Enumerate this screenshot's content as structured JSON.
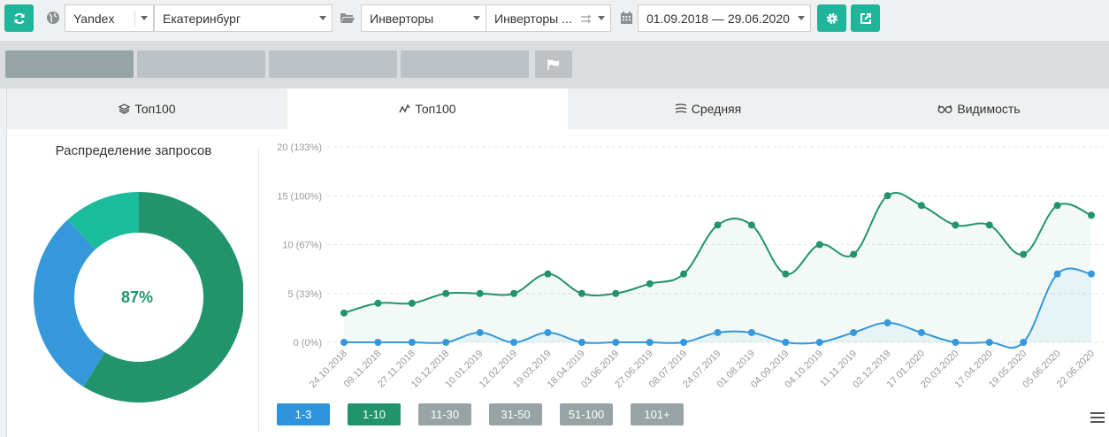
{
  "toolbar": {
    "engine": "Yandex",
    "region": "Екатеринбург",
    "project": "Инверторы",
    "group": "Инверторы ...",
    "date_range": "01.09.2018 — 29.06.2020"
  },
  "tabs": [
    {
      "label": "Топ100",
      "icon": "layers-icon"
    },
    {
      "label": "Топ100",
      "icon": "line-chart-icon"
    },
    {
      "label": "Средняя",
      "icon": "lines-icon"
    },
    {
      "label": "Видимость",
      "icon": "glasses-icon"
    }
  ],
  "pie": {
    "title": "Распределение запросов",
    "center_label": "87%",
    "slices": [
      {
        "color": "#22946b",
        "fraction": 0.588
      },
      {
        "color": "#3498db",
        "fraction": 0.294
      },
      {
        "color": "#1abc9c",
        "fraction": 0.118
      }
    ]
  },
  "legend": [
    {
      "label": "1-3",
      "color": "#2e93db"
    },
    {
      "label": "1-10",
      "color": "#22946b"
    },
    {
      "label": "11-30",
      "color": "#98a3a5"
    },
    {
      "label": "31-50",
      "color": "#98a3a5"
    },
    {
      "label": "51-100",
      "color": "#98a3a5"
    },
    {
      "label": "101+",
      "color": "#98a3a5"
    }
  ],
  "chart_data": {
    "type": "line",
    "categories": [
      "24.10.2018",
      "09.11.2018",
      "27.11.2018",
      "10.12.2018",
      "10.01.2019",
      "12.02.2019",
      "19.03.2019",
      "18.04.2019",
      "03.06.2019",
      "27.06.2019",
      "08.07.2019",
      "24.07.2019",
      "01.08.2019",
      "04.09.2019",
      "04.10.2019",
      "11.11.2019",
      "02.12.2019",
      "17.01.2020",
      "20.03.2020",
      "17.04.2020",
      "19.05.2020",
      "05.06.2020",
      "22.06.2020"
    ],
    "y_ticks": [
      "0 (0%)",
      "5 (33%)",
      "10 (67%)",
      "15 (100%)",
      "20 (133%)"
    ],
    "ylim": [
      0,
      20
    ],
    "series": [
      {
        "color": "#22946b",
        "values": [
          3,
          4,
          4,
          5,
          5,
          5,
          7,
          5,
          5,
          6,
          7,
          12,
          12,
          7,
          10,
          9,
          15,
          14,
          12,
          12,
          9,
          14,
          13
        ]
      },
      {
        "color": "#3498db",
        "values": [
          0,
          0,
          0,
          0,
          1,
          0,
          1,
          0,
          0,
          0,
          0,
          1,
          1,
          0,
          0,
          1,
          2,
          1,
          0,
          0,
          0,
          7,
          7
        ]
      }
    ]
  }
}
